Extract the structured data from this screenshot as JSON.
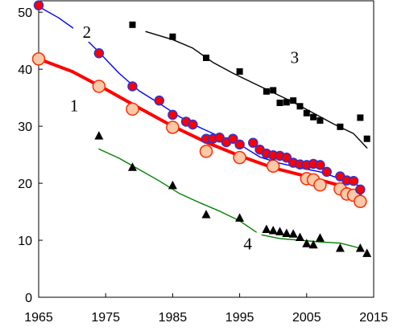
{
  "chart_data": {
    "type": "scatter",
    "title": "",
    "xlabel": "",
    "ylabel": "",
    "xlim": [
      1965,
      2015
    ],
    "ylim": [
      0,
      52
    ],
    "grid": false,
    "xticks": [
      1965,
      1975,
      1985,
      1995,
      2005,
      2015
    ],
    "yticks": [
      0,
      10,
      20,
      30,
      40,
      50
    ],
    "series": [
      {
        "name": "1",
        "color": "#ff0000",
        "marker": "circle",
        "marker_color": "#f9c9a8",
        "marker_edge": "#ff2a00",
        "points": [
          [
            1965,
            41.8
          ],
          [
            1974,
            37
          ],
          [
            1979,
            33
          ],
          [
            1985,
            29.8
          ],
          [
            1990,
            25.6
          ],
          [
            1995,
            24.5
          ],
          [
            2000,
            23
          ],
          [
            2005,
            20.8
          ],
          [
            2006,
            20.6
          ],
          [
            2007,
            19.7
          ],
          [
            2010,
            19
          ],
          [
            2011,
            18.1
          ],
          [
            2012,
            17.9
          ],
          [
            2013,
            16.8
          ]
        ],
        "trend": [
          [
            1965,
            41.8
          ],
          [
            1970,
            39.6
          ],
          [
            1975,
            36.5
          ],
          [
            1980,
            33.2
          ],
          [
            1985,
            30
          ],
          [
            1990,
            27.2
          ],
          [
            1995,
            24.8
          ],
          [
            2000,
            22.7
          ],
          [
            2005,
            21.2
          ],
          [
            2010,
            19.6
          ],
          [
            2013,
            18
          ]
        ]
      },
      {
        "name": "2",
        "color": "#0000ff",
        "marker": "circle",
        "marker_color": "#ff0000",
        "marker_edge": "#3333cc",
        "points": [
          [
            1965,
            51.2
          ],
          [
            1974,
            42.8
          ],
          [
            1979,
            37
          ],
          [
            1983,
            34.5
          ],
          [
            1985,
            32
          ],
          [
            1987,
            30.8
          ],
          [
            1988,
            30.3
          ],
          [
            1990,
            27.8
          ],
          [
            1991,
            27.8
          ],
          [
            1992,
            28
          ],
          [
            1993,
            27.2
          ],
          [
            1994,
            27.8
          ],
          [
            1995,
            26.8
          ],
          [
            1997,
            27.1
          ],
          [
            1998,
            25.9
          ],
          [
            1999,
            25.2
          ],
          [
            2000,
            24.9
          ],
          [
            2001,
            24.8
          ],
          [
            2002,
            24.5
          ],
          [
            2003,
            23.6
          ],
          [
            2004,
            23.3
          ],
          [
            2005,
            23.2
          ],
          [
            2006,
            23.4
          ],
          [
            2007,
            23.2
          ],
          [
            2008,
            22
          ],
          [
            2010,
            21.2
          ],
          [
            2011,
            20.5
          ],
          [
            2012,
            20.4
          ],
          [
            2013,
            18.9
          ]
        ],
        "trend": [
          [
            1965,
            51
          ],
          [
            1968,
            49
          ],
          [
            1971,
            46.5
          ],
          [
            1974,
            43
          ],
          [
            1977,
            39.3
          ],
          [
            1980,
            36.2
          ],
          [
            1983,
            34
          ],
          [
            1986,
            31.7
          ],
          [
            1989,
            29.8
          ],
          [
            1992,
            28.2
          ],
          [
            1995,
            26.8
          ],
          [
            1998,
            24.6
          ],
          [
            2001,
            23.5
          ],
          [
            2004,
            22.7
          ],
          [
            2007,
            22
          ],
          [
            2010,
            20.8
          ],
          [
            2013,
            19.5
          ]
        ]
      },
      {
        "name": "3",
        "color": "#000000",
        "marker": "square",
        "marker_color": "#000000",
        "points": [
          [
            1979,
            47.8
          ],
          [
            1985,
            45.7
          ],
          [
            1990,
            42
          ],
          [
            1995,
            39.6
          ],
          [
            1999,
            36.1
          ],
          [
            2000,
            36.3
          ],
          [
            2001,
            34.1
          ],
          [
            2002,
            34.2
          ],
          [
            2003,
            34.5
          ],
          [
            2004,
            33.5
          ],
          [
            2005,
            32.3
          ],
          [
            2006,
            31.6
          ],
          [
            2007,
            31
          ],
          [
            2010,
            29.9
          ],
          [
            2013,
            31.5
          ],
          [
            2014,
            27.8
          ]
        ],
        "trend": [
          [
            1981,
            46.6
          ],
          [
            1985,
            45.2
          ],
          [
            1988,
            43.7
          ],
          [
            1991,
            41.2
          ],
          [
            1994,
            39.3
          ],
          [
            1997,
            37.6
          ],
          [
            2000,
            35.9
          ],
          [
            2003,
            34.2
          ],
          [
            2006,
            32.3
          ],
          [
            2009,
            30.4
          ],
          [
            2012,
            28.7
          ],
          [
            2014,
            26.2
          ]
        ]
      },
      {
        "name": "4",
        "color": "#008000",
        "marker": "triangle",
        "marker_color": "#000000",
        "points": [
          [
            1974,
            28.3
          ],
          [
            1979,
            22.8
          ],
          [
            1985,
            19.6
          ],
          [
            1990,
            14.5
          ],
          [
            1995,
            13.9
          ],
          [
            1999,
            11.9
          ],
          [
            2000,
            11.7
          ],
          [
            2001,
            11.5
          ],
          [
            2002,
            11.2
          ],
          [
            2003,
            11.1
          ],
          [
            2004,
            10.5
          ],
          [
            2005,
            9.4
          ],
          [
            2006,
            9.2
          ],
          [
            2007,
            10.4
          ],
          [
            2010,
            8.6
          ],
          [
            2013,
            8.6
          ],
          [
            2014,
            7.7
          ]
        ],
        "trend": [
          [
            1974,
            26
          ],
          [
            1977,
            24.4
          ],
          [
            1980,
            22.4
          ],
          [
            1983,
            20.4
          ],
          [
            1986,
            18.2
          ],
          [
            1989,
            16.6
          ],
          [
            1992,
            15.1
          ],
          [
            1995,
            13.4
          ],
          [
            1998,
            11
          ],
          [
            2001,
            10.3
          ],
          [
            2004,
            10
          ],
          [
            2007,
            9.7
          ],
          [
            2010,
            9.5
          ],
          [
            2013,
            8.6
          ]
        ]
      }
    ],
    "labels": [
      {
        "text": "1",
        "x": 1970.3,
        "y": 33.6
      },
      {
        "text": "2",
        "x": 1972.2,
        "y": 46.5
      },
      {
        "text": "3",
        "x": 2003.2,
        "y": 42.1
      },
      {
        "text": "4",
        "x": 1996.2,
        "y": 9.4
      }
    ]
  }
}
